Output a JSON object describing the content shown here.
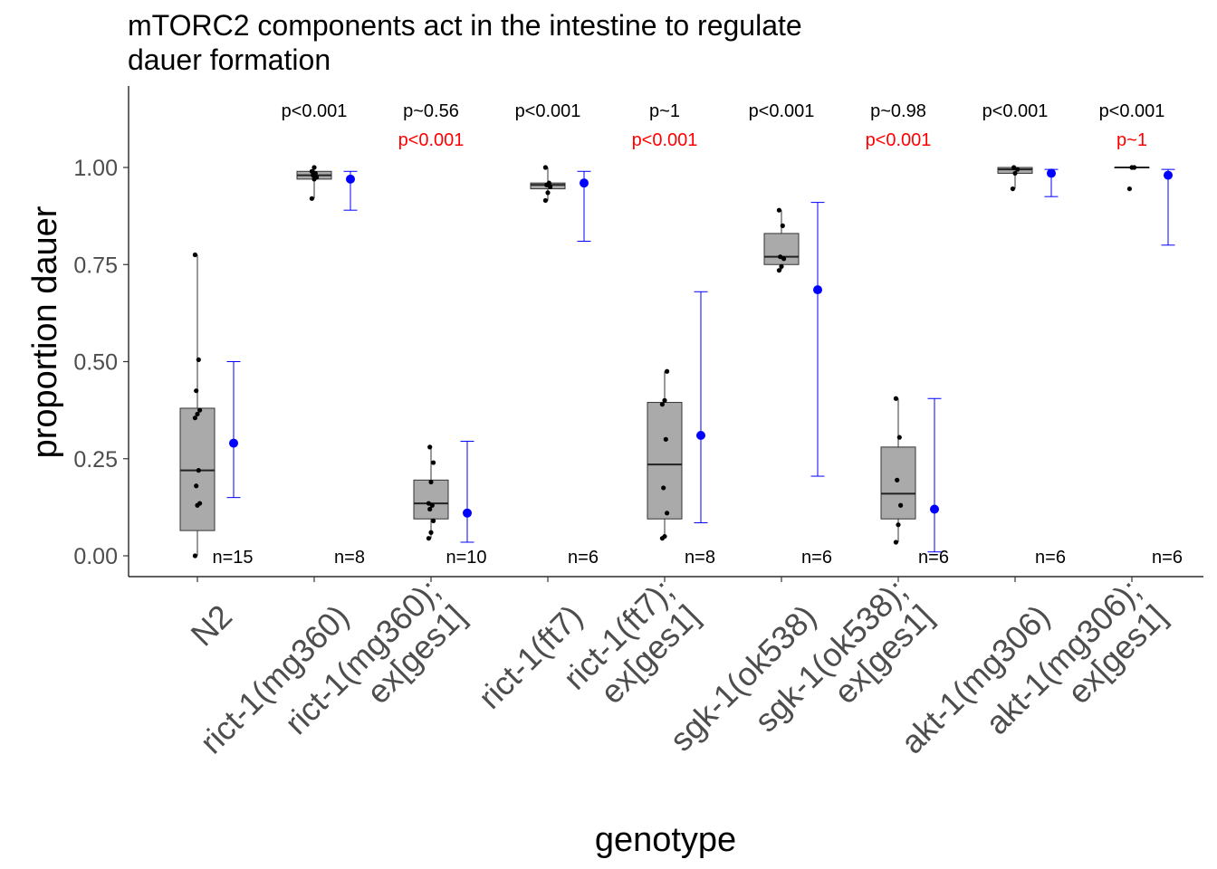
{
  "chart_data": {
    "type": "box",
    "title": [
      "mTORC2 components act in the intestine to regulate",
      "dauer formation"
    ],
    "xlabel": "genotype",
    "ylabel": "proportion dauer",
    "ylim": [
      -0.055,
      1.21
    ],
    "yticks": [
      "0.00",
      "0.25",
      "0.50",
      "0.75",
      "1.00"
    ],
    "grid": false,
    "colors": {
      "box_fill": "#aaaaaa",
      "box_line": "#333333",
      "point": "#000000",
      "model": "#0000ff",
      "pvalue": "#000000",
      "pvalue_red": "#ff0000"
    },
    "groups": [
      {
        "label": [
          "N2"
        ],
        "box": {
          "q1": 0.065,
          "median": 0.22,
          "q3": 0.38,
          "lower": 0.0,
          "upper": 0.775
        },
        "points": [
          0.0,
          0.13,
          0.135,
          0.18,
          0.22,
          0.355,
          0.365,
          0.375,
          0.425,
          0.505,
          0.775
        ],
        "estimate": {
          "mean": 0.29,
          "lo": 0.15,
          "hi": 0.5
        },
        "n": "n=15",
        "p_black": "",
        "p_red": ""
      },
      {
        "label": [
          "rict-1(mg360)"
        ],
        "box": {
          "q1": 0.97,
          "median": 0.98,
          "q3": 0.99,
          "lower": 0.92,
          "upper": 1.0
        },
        "points": [
          0.92,
          0.97,
          0.975,
          0.98,
          0.985,
          0.99,
          1.0
        ],
        "estimate": {
          "mean": 0.97,
          "lo": 0.89,
          "hi": 0.99
        },
        "n": "n=8",
        "p_black": "p<0.001",
        "p_red": ""
      },
      {
        "label": [
          "rict-1(mg360);",
          "ex[ges1]"
        ],
        "box": {
          "q1": 0.095,
          "median": 0.135,
          "q3": 0.195,
          "lower": 0.045,
          "upper": 0.28
        },
        "points": [
          0.045,
          0.06,
          0.09,
          0.12,
          0.13,
          0.135,
          0.19,
          0.24,
          0.28
        ],
        "estimate": {
          "mean": 0.11,
          "lo": 0.035,
          "hi": 0.295
        },
        "n": "n=10",
        "p_black": "p~0.56",
        "p_red": "p<0.001"
      },
      {
        "label": [
          "rict-1(ft7)"
        ],
        "box": {
          "q1": 0.945,
          "median": 0.955,
          "q3": 0.96,
          "lower": 0.915,
          "upper": 1.0
        },
        "points": [
          0.915,
          0.935,
          0.95,
          0.955,
          0.96,
          1.0
        ],
        "estimate": {
          "mean": 0.96,
          "lo": 0.81,
          "hi": 0.99
        },
        "n": "n=6",
        "p_black": "p<0.001",
        "p_red": ""
      },
      {
        "label": [
          "rict-1(ft7);",
          "ex[ges1]"
        ],
        "box": {
          "q1": 0.095,
          "median": 0.235,
          "q3": 0.395,
          "lower": 0.045,
          "upper": 0.475
        },
        "points": [
          0.045,
          0.05,
          0.11,
          0.175,
          0.3,
          0.39,
          0.4,
          0.475
        ],
        "estimate": {
          "mean": 0.31,
          "lo": 0.085,
          "hi": 0.68
        },
        "n": "n=8",
        "p_black": "p~1",
        "p_red": "p<0.001"
      },
      {
        "label": [
          "sgk-1(ok538)"
        ],
        "box": {
          "q1": 0.75,
          "median": 0.77,
          "q3": 0.83,
          "lower": 0.735,
          "upper": 0.89
        },
        "points": [
          0.735,
          0.745,
          0.765,
          0.77,
          0.85,
          0.89
        ],
        "estimate": {
          "mean": 0.685,
          "lo": 0.205,
          "hi": 0.91
        },
        "n": "n=6",
        "p_black": "p<0.001",
        "p_red": ""
      },
      {
        "label": [
          "sgk-1(ok538);",
          "ex[ges1]"
        ],
        "box": {
          "q1": 0.095,
          "median": 0.16,
          "q3": 0.28,
          "lower": 0.035,
          "upper": 0.405
        },
        "points": [
          0.035,
          0.08,
          0.13,
          0.195,
          0.305,
          0.405
        ],
        "estimate": {
          "mean": 0.12,
          "lo": 0.01,
          "hi": 0.405
        },
        "n": "n=6",
        "p_black": "p~0.98",
        "p_red": "p<0.001"
      },
      {
        "label": [
          "akt-1(mg306)"
        ],
        "box": {
          "q1": 0.985,
          "median": 0.995,
          "q3": 1.0,
          "lower": 0.945,
          "upper": 1.0
        },
        "points": [
          0.945,
          0.985,
          0.995,
          1.0
        ],
        "estimate": {
          "mean": 0.985,
          "lo": 0.925,
          "hi": 0.995
        },
        "n": "n=6",
        "p_black": "p<0.001",
        "p_red": ""
      },
      {
        "label": [
          "akt-1(mg306);",
          "ex[ges1]"
        ],
        "box": {
          "q1": 1.0,
          "median": 1.0,
          "q3": 1.0,
          "lower": 1.0,
          "upper": 1.0
        },
        "points": [
          0.945,
          1.0,
          1.0
        ],
        "estimate": {
          "mean": 0.98,
          "lo": 0.8,
          "hi": 0.995
        },
        "n": "n=6",
        "p_black": "p<0.001",
        "p_red": "p~1"
      }
    ]
  }
}
